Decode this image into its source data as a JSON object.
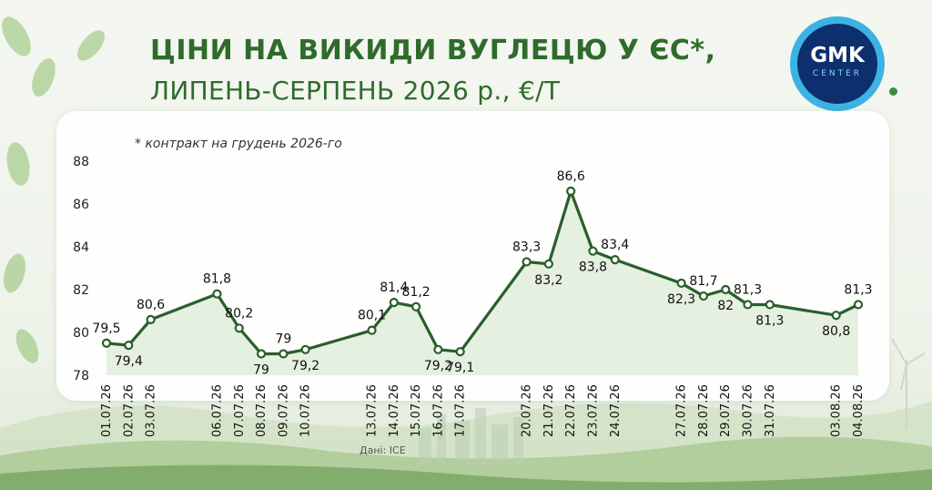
{
  "header": {
    "title": "ЦІНИ НА ВИКИДИ ВУГЛЕЦЮ У ЄС*,",
    "subtitle": "ЛИПЕНЬ-СЕРПЕНЬ 2026 р., €/Т"
  },
  "logo": {
    "name": "GMK",
    "sub": "CENTER"
  },
  "footnote": "* контракт на грудень 2026-го",
  "source": "Дані: ICE",
  "colors": {
    "line": "#2b5e2b",
    "area_fill": "#dcebd6",
    "title": "#2f6b2a",
    "logo_outer": "#3db3e3",
    "logo_inner": "#0d2f6e"
  },
  "chart_data": {
    "type": "line",
    "categories": [
      "01.07.26",
      "02.07.26",
      "03.07.26",
      "06.07.26",
      "07.07.26",
      "08.07.26",
      "09.07.26",
      "10.07.26",
      "13.07.26",
      "14.07.26",
      "15.07.26",
      "16.07.26",
      "17.07.26",
      "20.07.26",
      "21.07.26",
      "22.07.26",
      "23.07.26",
      "24.07.26",
      "27.07.26",
      "28.07.26",
      "29.07.26",
      "30.07.26",
      "31.07.26",
      "03.08.26",
      "04.08.26"
    ],
    "values": [
      79.5,
      79.4,
      80.6,
      81.8,
      80.2,
      79.0,
      79.0,
      79.2,
      80.1,
      81.4,
      81.2,
      79.2,
      79.1,
      83.3,
      83.2,
      86.6,
      83.8,
      83.4,
      82.3,
      81.7,
      82.0,
      81.3,
      81.3,
      80.8,
      81.3
    ],
    "value_labels": [
      "79,5",
      "79,4",
      "80,6",
      "81,8",
      "80,2",
      "79",
      "79",
      "79,2",
      "80,1",
      "81,4",
      "81,2",
      "79,2",
      "79,1",
      "83,3",
      "83,2",
      "86,6",
      "83,8",
      "83,4",
      "82,3",
      "81,7",
      "82",
      "81,3",
      "81,3",
      "80,8",
      "81,3"
    ],
    "yticks": [
      78,
      80,
      82,
      84,
      86,
      88
    ],
    "ylim": [
      78,
      88
    ],
    "x_axis": "calendar dates, weekends skipped",
    "grid": false,
    "area_fill": true
  }
}
